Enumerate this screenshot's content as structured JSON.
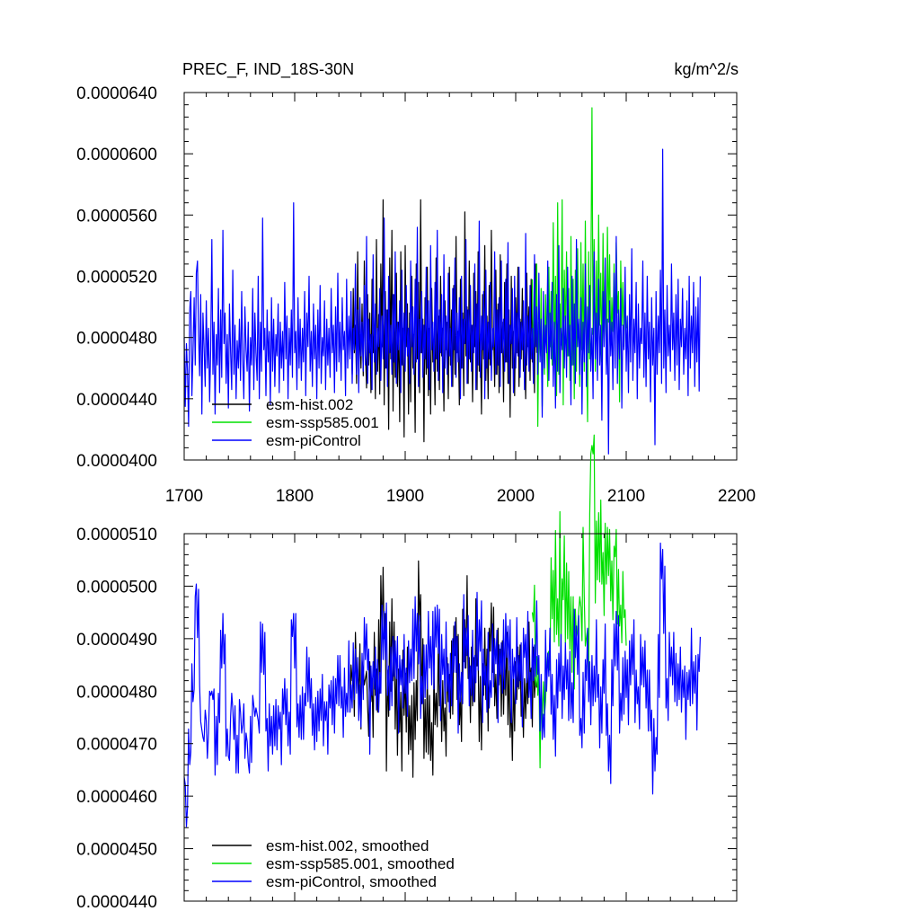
{
  "chart_data": [
    {
      "type": "line",
      "title": "PREC_F, IND_18S-30N",
      "units": "kg/m^2/s",
      "xlim": [
        1700,
        2200
      ],
      "ylim": [
        4e-05,
        6.4e-05
      ],
      "xticks": [
        "1700",
        "1800",
        "1900",
        "2000",
        "2100",
        "2200"
      ],
      "yticks": [
        "0.0000400",
        "0.0000440",
        "0.0000480",
        "0.0000520",
        "0.0000560",
        "0.0000600",
        "0.0000640"
      ],
      "grid": false,
      "legend_position": "bottom-left",
      "series": [
        {
          "name": "esm-hist.002",
          "color": "#000000",
          "start_year": 1850,
          "values": [
            4.78e-05,
            4.94e-05,
            4.56e-05,
            5.12e-05,
            4.7e-05,
            4.88e-05,
            4.5e-05,
            5.36e-05,
            4.65e-05,
            4.82e-05,
            4.6e-05,
            5.02e-05,
            4.55e-05,
            5.3e-05,
            4.72e-05,
            4.47e-05,
            5.08e-05,
            4.62e-05,
            4.96e-05,
            4.44e-05,
            5.18e-05,
            4.7e-05,
            4.84e-05,
            4.4e-05,
            5.44e-05,
            4.58e-05,
            4.95e-05,
            4.43e-05,
            5.28e-05,
            4.74e-05,
            5.7e-05,
            4.36e-05,
            5.1e-05,
            4.6e-05,
            4.98e-05,
            4.2e-05,
            5.32e-05,
            4.66e-05,
            5.5e-05,
            4.32e-05,
            5.08e-05,
            4.54e-05,
            5.22e-05,
            4.48e-05,
            4.9e-05,
            4.25e-05,
            5.36e-05,
            4.62e-05,
            4.86e-05,
            4.15e-05,
            5.4e-05,
            4.74e-05,
            5.02e-05,
            4.3e-05,
            4.96e-05,
            4.38e-05,
            5.2e-05,
            4.6e-05,
            4.82e-05,
            4.18e-05,
            5.28e-05,
            4.66e-05,
            5.16e-05,
            4.44e-05,
            5.7e-05,
            4.7e-05,
            4.92e-05,
            4.12e-05,
            5.06e-05,
            4.56e-05,
            5.26e-05,
            4.42e-05,
            4.86e-05,
            4.3e-05,
            5.12e-05,
            4.64e-05,
            4.78e-05,
            4.36e-05,
            5.32e-05,
            4.58e-05,
            4.94e-05,
            4.46e-05,
            5.2e-05,
            4.68e-05,
            4.86e-05,
            4.32e-05,
            5.04e-05,
            4.72e-05,
            4.9e-05,
            4.4e-05,
            5.26e-05,
            4.62e-05,
            4.98e-05,
            4.48e-05,
            5.14e-05,
            4.56e-05,
            5.46e-05,
            4.7e-05,
            4.84e-05,
            4.36e-05,
            5.18e-05,
            4.6e-05,
            4.96e-05,
            4.42e-05,
            5.62e-05,
            4.68e-05,
            5e-05,
            4.5e-05,
            5.3e-05,
            4.64e-05,
            4.88e-05,
            4.38e-05,
            5.22e-05,
            4.74e-05,
            5.1e-05,
            4.46e-05,
            5.36e-05,
            4.58e-05,
            4.82e-05,
            4.3e-05,
            5.08e-05,
            4.66e-05,
            5.4e-05,
            4.52e-05,
            4.94e-05,
            4.4e-05,
            5.14e-05,
            4.62e-05,
            5.5e-05,
            4.72e-05,
            4.86e-05,
            4.48e-05,
            5.24e-05,
            4.56e-05,
            5.02e-05,
            4.44e-05,
            5.34e-05,
            4.7e-05,
            4.9e-05,
            4.38e-05,
            5.16e-05,
            4.64e-05,
            5.28e-05,
            4.5e-05,
            4.98e-05,
            4.28e-05,
            5.2e-05,
            4.6e-05,
            4.84e-05,
            4.42e-05,
            5.06e-05,
            4.7e-05,
            5.26e-05,
            4.48e-05,
            4.92e-05,
            4.66e-05,
            5.12e-05,
            4.58e-05,
            4.8e-05,
            4.4e-05,
            5.22e-05,
            4.74e-05,
            5e-05,
            4.52e-05,
            5.18e-05,
            4.64e-05,
            4.88e-05,
            4.44e-05,
            5.28e-05,
            4.7e-05
          ]
        },
        {
          "name": "esm-ssp585.001",
          "color": "#00e000",
          "start_year": 2015,
          "values": [
            5.18e-05,
            4.62e-05,
            5.05e-05,
            4.88e-05,
            5.28e-05,
            4.22e-05,
            4.9e-05,
            4.68e-05,
            5.12e-05,
            4.35e-05,
            4.98e-05,
            4.56e-05,
            5.08e-05,
            4.8e-05,
            4.48e-05,
            5.26e-05,
            4.74e-05,
            5.1e-05,
            4.62e-05,
            5.55e-05,
            4.68e-05,
            5.2e-05,
            4.42e-05,
            5.68e-05,
            4.56e-05,
            5.02e-05,
            4.75e-05,
            5.7e-05,
            4.36e-05,
            5.24e-05,
            4.82e-05,
            5.36e-05,
            4.68e-05,
            5.12e-05,
            4.52e-05,
            5.46e-05,
            4.62e-05,
            5.18e-05,
            4.4e-05,
            5.24e-05,
            4.58e-05,
            5.38e-05,
            4.9e-05,
            4.48e-05,
            5.42e-05,
            4.72e-05,
            5.28e-05,
            4.58e-05,
            5.56e-05,
            4.76e-05,
            4.25e-05,
            5.36e-05,
            4.66e-05,
            5.12e-05,
            6.3e-05,
            4.82e-05,
            5.44e-05,
            4.58e-05,
            5.3e-05,
            4.7e-05,
            5.6e-05,
            4.88e-05,
            5.22e-05,
            4.64e-05,
            5.48e-05,
            4.8e-05,
            5.18e-05,
            4.62e-05,
            5.52e-05,
            4.9e-05,
            5.34e-05,
            4.72e-05,
            5.06e-05,
            4.84e-05,
            5.28e-05,
            4.78e-05,
            5.42e-05,
            4.96e-05,
            5.1e-05,
            4.38e-05,
            5.3e-05,
            4.88e-05,
            5.16e-05,
            4.74e-05,
            5.06e-05,
            4.86e-05
          ]
        },
        {
          "name": "esm-piControl",
          "color": "#0000ff",
          "start_year": 1700,
          "values": [
            4.8e-05,
            4.35e-05,
            4.76e-05,
            4.58e-05,
            4.22e-05,
            4.98e-05,
            5.1e-05,
            4.42e-05,
            4.7e-05,
            5.06e-05,
            4.62e-05,
            5.22e-05,
            5.3e-05,
            4.82e-05,
            4.55e-05,
            5.08e-05,
            4.3e-05,
            4.96e-05,
            4.74e-05,
            4.48e-05,
            5.04e-05,
            4.6e-05,
            4.86e-05,
            4.38e-05,
            4.72e-05,
            5.44e-05,
            4.56e-05,
            4.9e-05,
            4.3e-05,
            4.82e-05,
            4.62e-05,
            5.12e-05,
            4.44e-05,
            4.98e-05,
            4.54e-05,
            5.5e-05,
            4.76e-05,
            4.96e-05,
            4.5e-05,
            4.82e-05,
            4.34e-05,
            5.02e-05,
            4.7e-05,
            4.46e-05,
            5.24e-05,
            4.56e-05,
            4.88e-05,
            4.4e-05,
            4.78e-05,
            4.6e-05,
            4.92e-05,
            4.52e-05,
            5.1e-05,
            4.66e-05,
            4.4e-05,
            5e-05,
            4.72e-05,
            4.58e-05,
            4.9e-05,
            4.32e-05,
            4.8e-05,
            4.62e-05,
            5.12e-05,
            4.46e-05,
            4.96e-05,
            4.7e-05,
            4.52e-05,
            5.2e-05,
            4.4e-05,
            4.9e-05,
            4.58e-05,
            5.58e-05,
            4.72e-05,
            4.86e-05,
            4.42e-05,
            4.98e-05,
            4.64e-05,
            4.84e-05,
            4.36e-05,
            5.06e-05,
            4.58e-05,
            4.92e-05,
            4.48e-05,
            4.82e-05,
            4.68e-05,
            5.02e-05,
            4.44e-05,
            4.9e-05,
            4.6e-05,
            4.84e-05,
            4.52e-05,
            5.16e-05,
            4.66e-05,
            4.94e-05,
            4.4e-05,
            4.86e-05,
            4.62e-05,
            4.98e-05,
            4.54e-05,
            5.68e-05,
            4.7e-05,
            4.84e-05,
            4.46e-05,
            5.06e-05,
            4.6e-05,
            4.92e-05,
            4.52e-05,
            4.86e-05,
            4.64e-05,
            5.1e-05,
            4.42e-05,
            4.96e-05,
            4.74e-05,
            5.2e-05,
            4.58e-05,
            4.84e-05,
            4.48e-05,
            5.02e-05,
            4.66e-05,
            4.88e-05,
            4.4e-05,
            4.98e-05,
            4.6e-05,
            5.14e-05,
            4.5e-05,
            4.8e-05,
            4.68e-05,
            5.04e-05,
            4.46e-05,
            4.92e-05,
            4.62e-05,
            4.86e-05,
            4.54e-05,
            5.12e-05,
            4.7e-05,
            4.88e-05,
            4.44e-05,
            5e-05,
            4.58e-05,
            5.22e-05,
            4.64e-05,
            4.9e-05,
            4.52e-05,
            5.06e-05,
            4.72e-05,
            4.84e-05,
            4.42e-05,
            5.18e-05,
            4.6e-05,
            4.94e-05,
            4.66e-05,
            5.1e-05,
            4.5e-05,
            4.86e-05,
            4.72e-05,
            5.28e-05,
            4.56e-05,
            4.98e-05,
            4.44e-05,
            5.06e-05,
            4.68e-05,
            4.9e-05,
            4.58e-05,
            5.14e-05,
            4.62e-05,
            5.46e-05,
            4.5e-05,
            4.92e-05,
            4.7e-05,
            4.82e-05,
            4.46e-05,
            5.34e-05,
            4.64e-05,
            5.02e-05,
            4.56e-05,
            4.86e-05,
            4.74e-05,
            5.12e-05,
            4.52e-05,
            4.94e-05,
            4.66e-05,
            5.58e-05,
            4.6e-05,
            4.98e-05,
            4.48e-05,
            5.2e-05,
            4.7e-05,
            4.88e-05,
            4.56e-05,
            5.08e-05,
            4.64e-05,
            5.36e-05,
            4.5e-05,
            4.9e-05,
            4.72e-05,
            5.04e-05,
            4.44e-05,
            5.24e-05,
            4.62e-05,
            4.96e-05,
            4.58e-05,
            5.14e-05,
            4.68e-05,
            4.86e-05,
            4.5e-05,
            5.3e-05,
            4.74e-05,
            5e-05,
            4.56e-05,
            5.18e-05,
            4.64e-05,
            5.52e-05,
            4.48e-05,
            4.92e-05,
            4.7e-05,
            5.1e-05,
            4.54e-05,
            4.88e-05,
            4.66e-05,
            5.26e-05,
            4.6e-05,
            5.04e-05,
            4.46e-05,
            5.4e-05,
            4.72e-05,
            4.9e-05,
            4.58e-05,
            5.16e-05,
            4.66e-05,
            5.5e-05,
            4.52e-05,
            4.98e-05,
            4.7e-05,
            5.08e-05,
            4.44e-05,
            5.34e-05,
            4.6e-05,
            4.94e-05,
            4.56e-05,
            5.22e-05,
            4.68e-05,
            4.86e-05,
            4.48e-05,
            5.12e-05,
            4.72e-05,
            5.32e-05,
            4.54e-05,
            4.96e-05,
            4.64e-05,
            5.06e-05,
            4.4e-05,
            5.2e-05,
            4.6e-05,
            4.92e-05,
            4.76e-05,
            5.44e-05,
            4.5e-05,
            4.98e-05,
            4.66e-05,
            5.14e-05,
            4.58e-05,
            4.88e-05,
            4.7e-05,
            5.28e-05,
            4.46e-05,
            5.02e-05,
            4.62e-05,
            5.56e-05,
            4.54e-05,
            4.94e-05,
            4.72e-05,
            5.1e-05,
            4.4e-05,
            5.24e-05,
            4.6e-05,
            4.9e-05,
            4.66e-05,
            5.16e-05,
            4.52e-05,
            4.86e-05,
            4.74e-05,
            5.36e-05,
            4.56e-05,
            4.98e-05,
            4.62e-05,
            5.06e-05,
            4.48e-05,
            5.3e-05,
            4.7e-05,
            4.92e-05,
            4.58e-05,
            5.18e-05,
            4.64e-05,
            5.42e-05,
            4.5e-05,
            4.88e-05,
            4.76e-05,
            5.12e-05,
            4.44e-05,
            5.2e-05,
            4.6e-05,
            4.96e-05,
            4.68e-05,
            5.26e-05,
            4.54e-05,
            4.9e-05,
            4.72e-05,
            5.04e-05,
            4.46e-05,
            5.48e-05,
            4.62e-05,
            4.94e-05,
            4.58e-05,
            5.14e-05,
            4.66e-05,
            4.86e-05,
            4.5e-05,
            5.34e-05,
            4.74e-05,
            5e-05,
            4.56e-05,
            5.22e-05,
            4.64e-05,
            4.92e-05,
            4.28e-05,
            5.1e-05,
            4.6e-05,
            4.88e-05,
            4.7e-05,
            5.3e-05,
            4.52e-05,
            4.96e-05,
            4.66e-05,
            5.16e-05,
            4.48e-05,
            4.9e-05,
            4.34e-05,
            5.08e-05,
            4.58e-05,
            5.4e-05,
            4.44e-05,
            4.86e-05,
            4.72e-05,
            5.12e-05,
            4.6e-05,
            4.94e-05,
            4.54e-05,
            5.26e-05,
            4.68e-05,
            4.88e-05,
            4.36e-05,
            5.2e-05,
            4.62e-05,
            5.02e-05,
            4.5e-05,
            5.44e-05,
            4.74e-05,
            4.92e-05,
            4.56e-05,
            5.06e-05,
            4.3e-05,
            4.9e-05,
            4.64e-05,
            5.28e-05,
            4.48e-05,
            5e-05,
            4.7e-05,
            5.14e-05,
            4.58e-05,
            4.86e-05,
            4.4e-05,
            5.36e-05,
            4.66e-05,
            4.96e-05,
            4.52e-05,
            5.18e-05,
            4.62e-05,
            4.88e-05,
            4.26e-05,
            5.1e-05,
            4.74e-05,
            5.32e-05,
            4.56e-05,
            4.92e-05,
            4.04e-05,
            5.04e-05,
            4.68e-05,
            4.9e-05,
            4.46e-05,
            5.22e-05,
            4.6e-05,
            5.46e-05,
            4.5e-05,
            4.98e-05,
            4.66e-05,
            5.12e-05,
            4.34e-05,
            4.88e-05,
            4.72e-05,
            5.26e-05,
            4.58e-05,
            4.94e-05,
            4.44e-05,
            5.08e-05,
            4.64e-05,
            5.38e-05,
            4.52e-05,
            4.92e-05,
            4.7e-05,
            5.16e-05,
            4.4e-05,
            5.02e-05,
            4.6e-05,
            4.86e-05,
            4.76e-05,
            5.3e-05,
            4.54e-05,
            4.96e-05,
            4.48e-05,
            5.2e-05,
            4.66e-05,
            4.9e-05,
            4.38e-05,
            5.06e-05,
            4.62e-05,
            4.86e-05,
            4.1e-05,
            5.1e-05,
            4.56e-05,
            4.94e-05,
            4.7e-05,
            5.24e-05,
            4.5e-05,
            6.03e-05,
            4.6e-05,
            4.98e-05,
            4.44e-05,
            5.14e-05,
            4.68e-05,
            4.88e-05,
            4.58e-05,
            5.28e-05,
            4.72e-05,
            4.96e-05,
            4.52e-05,
            5.08e-05,
            4.62e-05,
            5.18e-05,
            4.46e-05,
            4.92e-05,
            4.74e-05,
            5.12e-05,
            4.56e-05,
            4.86e-05,
            4.66e-05,
            5.04e-05,
            4.42e-05,
            5.2e-05,
            4.6e-05,
            4.94e-05,
            4.7e-05,
            5.16e-05,
            4.48e-05,
            5e-05,
            4.64e-05,
            5.06e-05,
            4.45e-05,
            5.2e-05
          ]
        }
      ]
    },
    {
      "type": "line",
      "title": "",
      "xlim": [
        1700,
        2200
      ],
      "ylim": [
        4.4e-05,
        5.1e-05
      ],
      "yticks": [
        "0.0000440",
        "0.0000450",
        "0.0000460",
        "0.0000470",
        "0.0000480",
        "0.0000490",
        "0.0000500",
        "0.0000510"
      ],
      "grid": false,
      "legend_position": "bottom-left",
      "series": [
        {
          "name": "esm-hist.002, smoothed",
          "color": "#000000",
          "source_series": 0,
          "smoothing_window": 5
        },
        {
          "name": "esm-ssp585.001, smoothed",
          "color": "#00e000",
          "source_series": 1,
          "smoothing_window": 5
        },
        {
          "name": "esm-piControl, smoothed",
          "color": "#0000ff",
          "source_series": 2,
          "smoothing_window": 5
        }
      ]
    }
  ]
}
